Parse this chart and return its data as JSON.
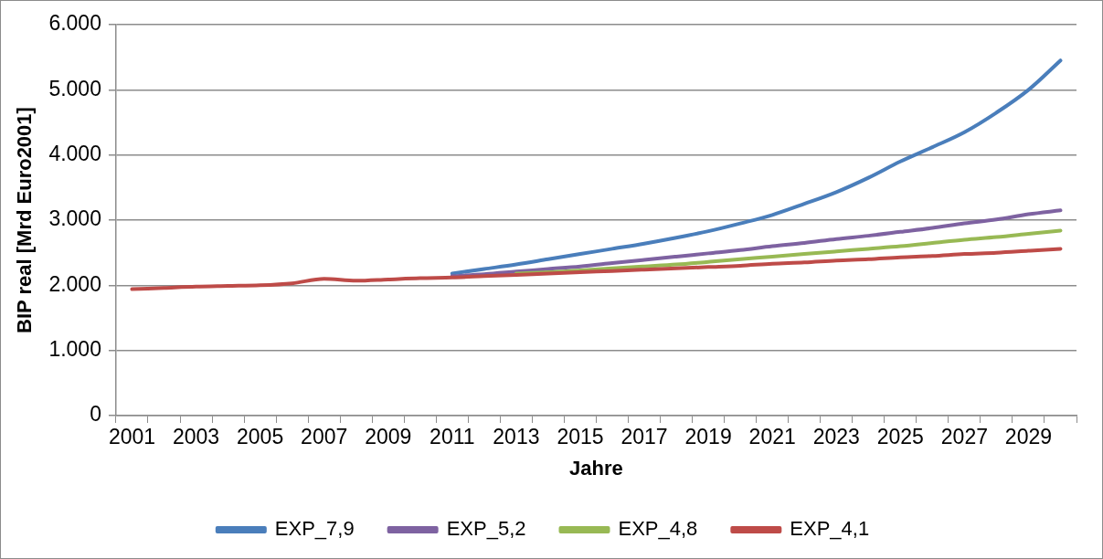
{
  "chart_data": {
    "type": "line",
    "xlabel": "Jahre",
    "ylabel": "BIP real [Mrd Euro2001]",
    "categories": [
      "2001",
      null,
      "2003",
      null,
      "2005",
      null,
      "2007",
      null,
      "2009",
      null,
      "2011",
      null,
      "2013",
      null,
      "2015",
      null,
      "2017",
      null,
      "2019",
      null,
      "2021",
      null,
      "2023",
      null,
      "2025",
      null,
      "2027",
      null,
      "2029",
      null
    ],
    "series": [
      {
        "name": "EXP_7,9",
        "color": "#4a7ebb",
        "values": [
          null,
          null,
          null,
          null,
          null,
          null,
          null,
          null,
          null,
          null,
          2180,
          2250,
          2320,
          2400,
          2480,
          2560,
          2640,
          2730,
          2830,
          2950,
          3080,
          3250,
          3430,
          3650,
          3900,
          4120,
          4350,
          4650,
          5000,
          5450
        ]
      },
      {
        "name": "EXP_5,2",
        "color": "#7e62a1",
        "values": [
          null,
          null,
          null,
          null,
          null,
          null,
          null,
          null,
          null,
          null,
          2140,
          2170,
          2210,
          2250,
          2290,
          2340,
          2390,
          2440,
          2490,
          2540,
          2600,
          2650,
          2710,
          2760,
          2820,
          2880,
          2950,
          3010,
          3090,
          3150
        ]
      },
      {
        "name": "EXP_4,8",
        "color": "#98b954",
        "values": [
          null,
          null,
          null,
          null,
          null,
          null,
          null,
          null,
          null,
          null,
          null,
          null,
          2180,
          2200,
          2230,
          2260,
          2290,
          2320,
          2360,
          2400,
          2440,
          2480,
          2520,
          2560,
          2600,
          2650,
          2700,
          2740,
          2790,
          2840
        ]
      },
      {
        "name": "EXP_4,1",
        "color": "#be4b48",
        "values": [
          1940,
          1960,
          1980,
          1990,
          2000,
          2030,
          2100,
          2070,
          2090,
          2110,
          2120,
          2140,
          2160,
          2180,
          2200,
          2220,
          2240,
          2260,
          2280,
          2300,
          2330,
          2350,
          2380,
          2400,
          2430,
          2450,
          2480,
          2500,
          2530,
          2560
        ]
      }
    ],
    "ylim": [
      0,
      6000
    ],
    "yticks": [
      {
        "value": 0,
        "label": "0"
      },
      {
        "value": 1000,
        "label": "1.000"
      },
      {
        "value": 2000,
        "label": "2.000"
      },
      {
        "value": 3000,
        "label": "3.000"
      },
      {
        "value": 4000,
        "label": "4.000"
      },
      {
        "value": 5000,
        "label": "5.000"
      },
      {
        "value": 6000,
        "label": "6.000"
      }
    ],
    "grid": "y",
    "legend": "bottom",
    "marker": "none",
    "line_style": "solid"
  }
}
